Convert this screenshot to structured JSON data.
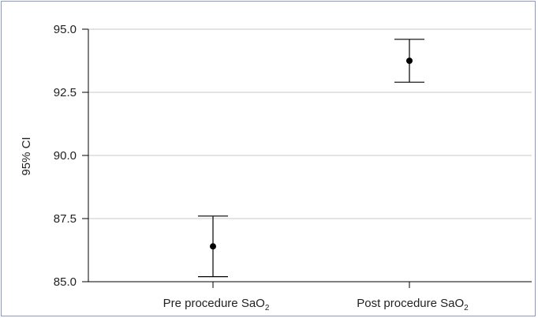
{
  "chart_data": {
    "type": "error-bar",
    "title": "",
    "xlabel": "",
    "ylabel": "95% CI",
    "ylim": [
      85.0,
      95.0
    ],
    "yticks": [
      "85.0",
      "87.5",
      "90.0",
      "92.5",
      "95.0"
    ],
    "grid": true,
    "categories": [
      {
        "main": "Pre procedure SaO",
        "sub": "2"
      },
      {
        "main": "Post procedure SaO",
        "sub": "2"
      }
    ],
    "points": [
      {
        "mean": 86.4,
        "lower": 85.2,
        "upper": 87.6
      },
      {
        "mean": 93.75,
        "lower": 92.9,
        "upper": 94.6
      }
    ],
    "colors": {
      "grid": "#c8c8c8",
      "axis": "#000000",
      "marker": "#000000",
      "frame": "#8a9ac8"
    }
  }
}
